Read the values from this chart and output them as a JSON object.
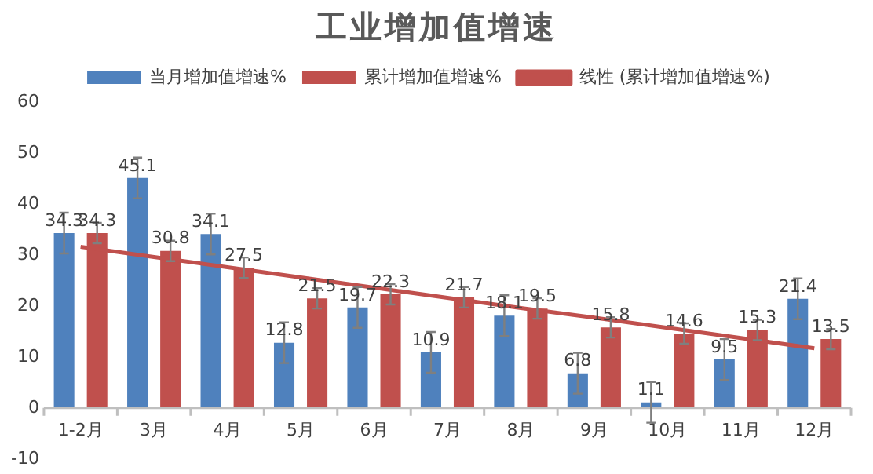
{
  "chart_data": {
    "type": "bar",
    "title": "工业增加值增速",
    "categories": [
      "1-2月",
      "3月",
      "4月",
      "5月",
      "6月",
      "7月",
      "8月",
      "9月",
      "10月",
      "11月",
      "12月"
    ],
    "series": [
      {
        "name": "当月增加值增速%",
        "color": "#4f81bd",
        "values": [
          34.3,
          45.1,
          34.1,
          12.8,
          19.7,
          10.9,
          18.1,
          6.8,
          1.1,
          9.5,
          21.4
        ],
        "value_labels": [
          "34.3",
          "45.1",
          "34.1",
          "12.8",
          "19.7",
          "10.9",
          "18.1",
          "6.8",
          "1.1",
          "9.5",
          "21.4"
        ],
        "errors": [
          4,
          4,
          4,
          4,
          4,
          4,
          4,
          4,
          4,
          4,
          4
        ]
      },
      {
        "name": "累计增加值增速%",
        "color": "#c0504d",
        "values": [
          34.3,
          30.8,
          27.5,
          21.5,
          22.3,
          21.7,
          19.5,
          15.8,
          14.6,
          15.3,
          13.5
        ],
        "value_labels": [
          "34.3",
          "30.8",
          "27.5",
          "21.5",
          "22.3",
          "21.7",
          "19.5",
          "15.8",
          "14.6",
          "15.3",
          "13.5"
        ],
        "errors": [
          2,
          2,
          2,
          2,
          2,
          2,
          2,
          2,
          2,
          2,
          2
        ]
      },
      {
        "name": "线性 (累计增加值增速%)",
        "type": "line",
        "color": "#c0504d",
        "values": [
          31.6,
          29.6,
          27.6,
          25.6,
          23.6,
          21.6,
          19.6,
          17.7,
          15.7,
          13.7,
          11.7
        ],
        "marker": "none"
      }
    ],
    "ylim": [
      -10,
      60
    ],
    "yticks": [
      -10,
      0,
      10,
      20,
      30,
      40,
      50,
      60
    ],
    "grid": false,
    "legend": "top"
  }
}
